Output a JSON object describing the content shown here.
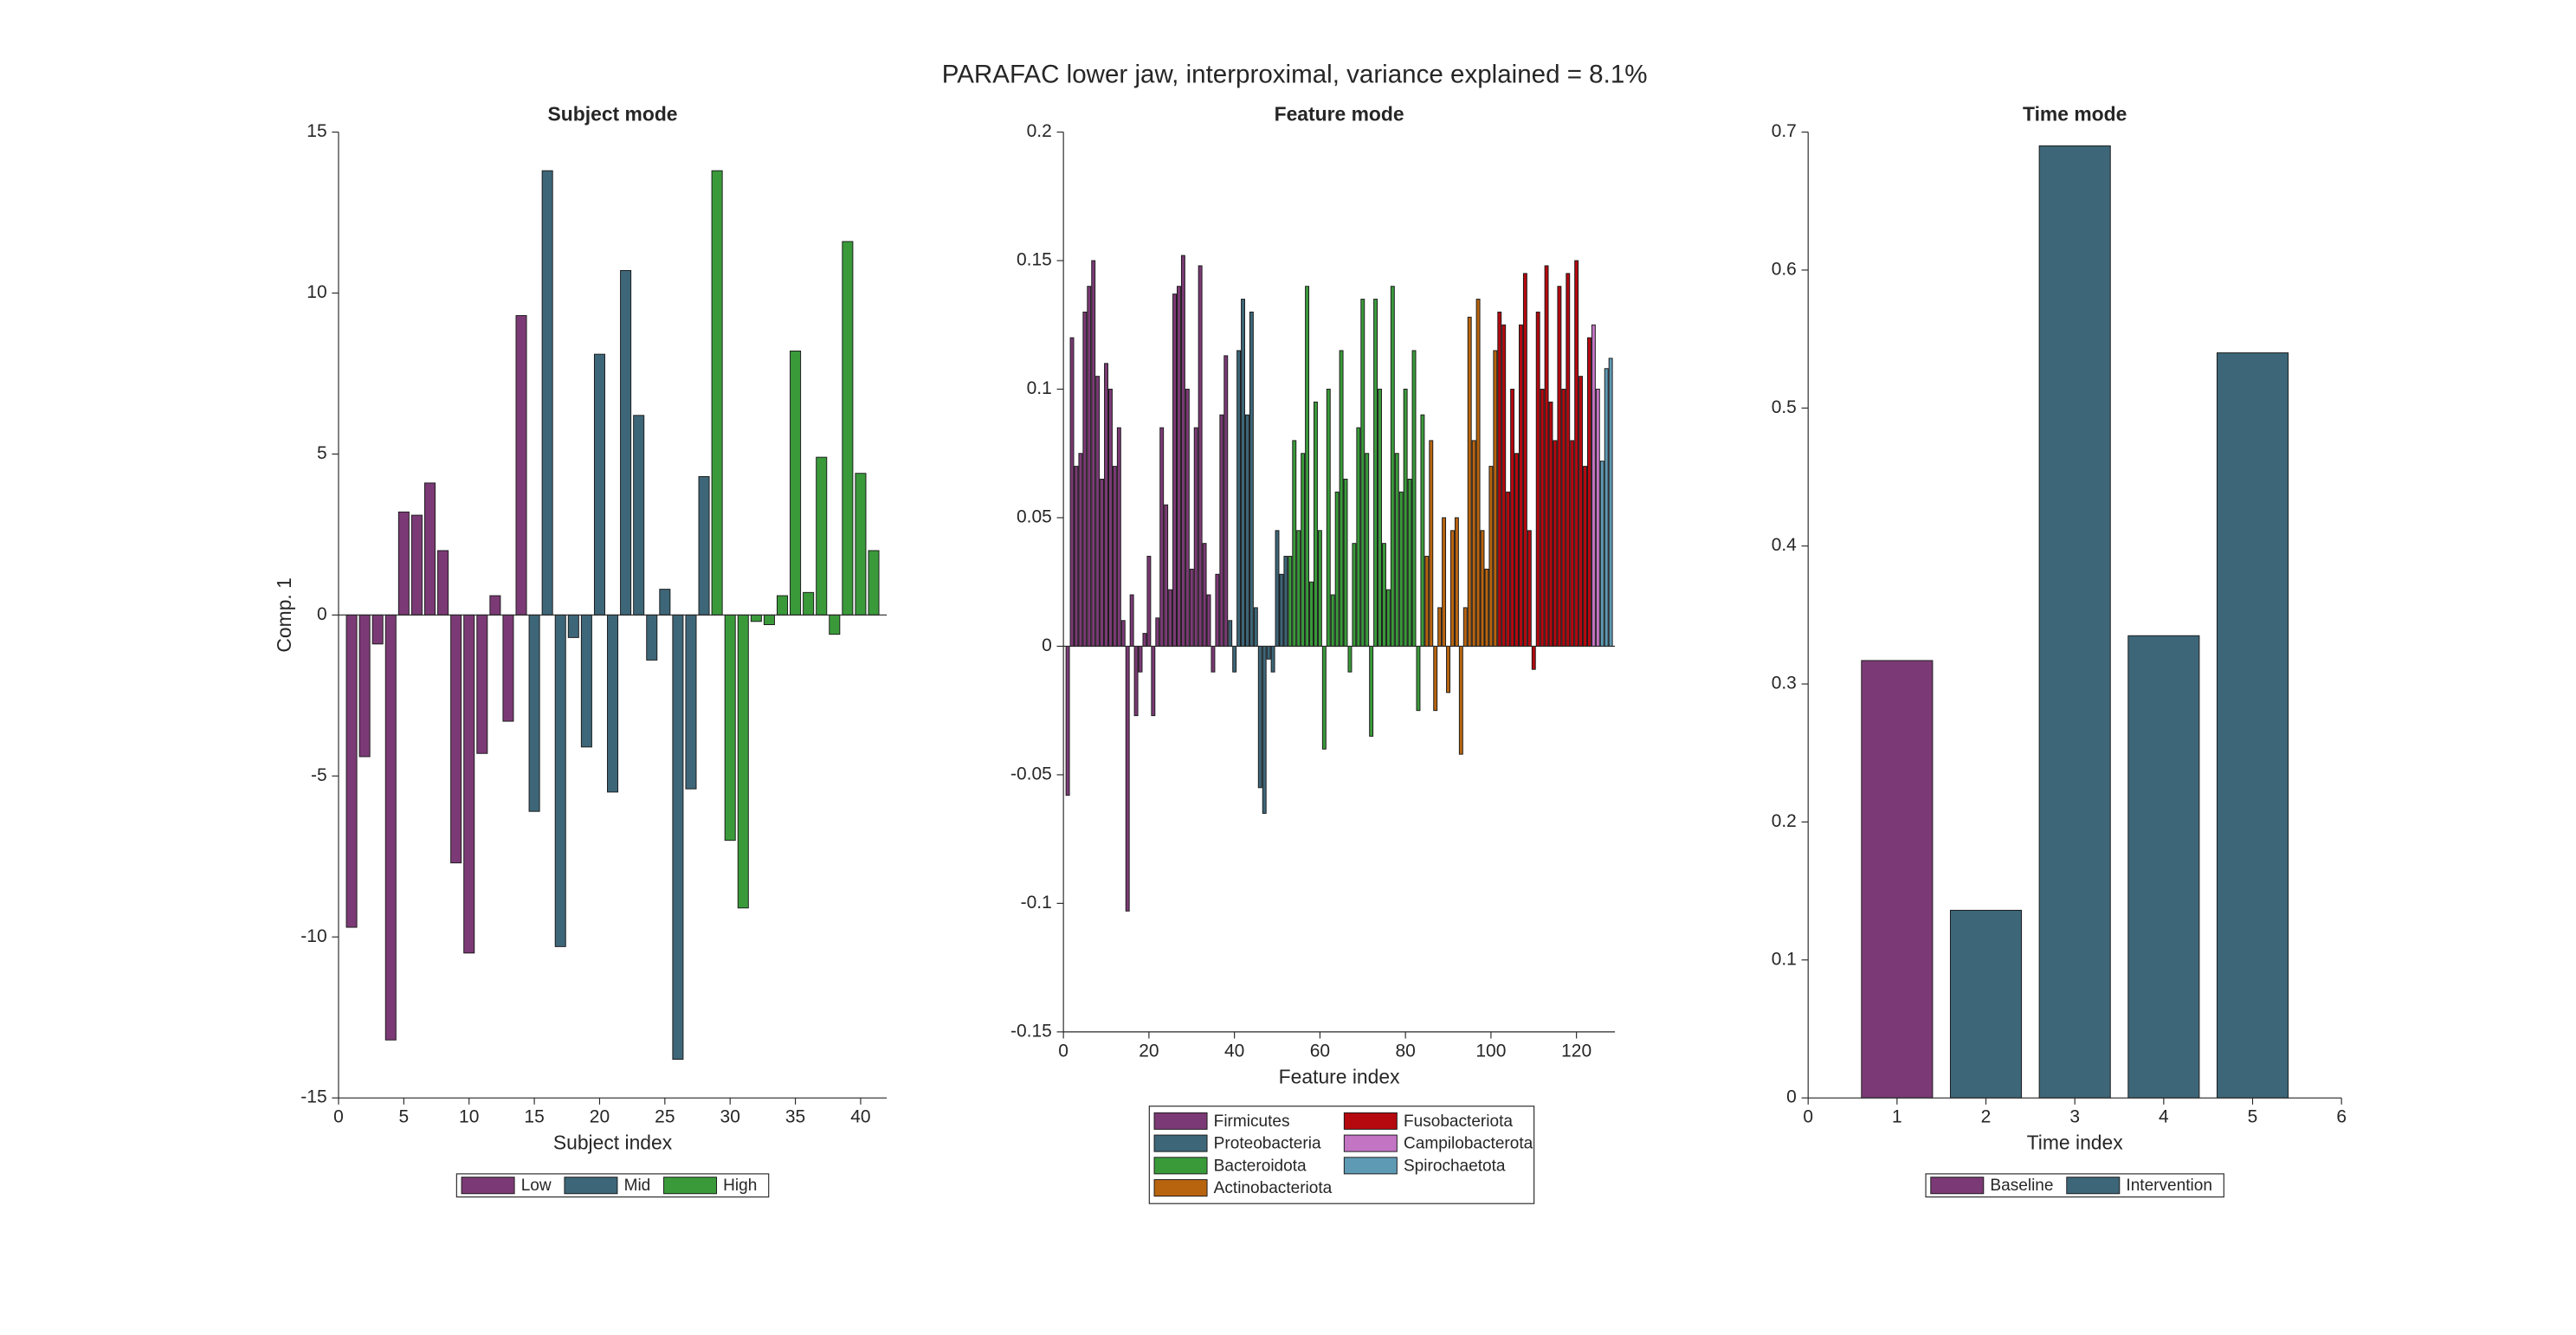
{
  "title": "PARAFAC lower jaw, interproximal, variance explained =  8.1%",
  "chart_data": [
    {
      "type": "bar",
      "title": "Subject mode",
      "xlabel": "Subject index",
      "ylabel": "Comp. 1",
      "xlim": [
        0,
        42
      ],
      "xticks": [
        0,
        5,
        10,
        15,
        20,
        25,
        30,
        35,
        40
      ],
      "ylim": [
        -15,
        15
      ],
      "yticks": [
        -15,
        -10,
        -5,
        0,
        5,
        10,
        15
      ],
      "legend": "south",
      "series": [
        {
          "name": "Low",
          "color": "#7b3a75",
          "x": [
            1,
            2,
            3,
            4,
            5,
            6,
            7,
            8,
            9,
            10,
            11,
            12,
            13,
            14
          ],
          "values": [
            -9.7,
            -4.4,
            -0.9,
            -13.2,
            3.2,
            3.1,
            4.1,
            2.0,
            -7.7,
            -10.5,
            -4.3,
            0.6,
            -3.3,
            9.3
          ]
        },
        {
          "name": "Mid",
          "color": "#3d6678",
          "x": [
            15,
            16,
            17,
            18,
            19,
            20,
            21,
            22,
            23,
            24,
            25,
            26,
            27,
            28
          ],
          "values": [
            -6.1,
            13.8,
            -10.3,
            -0.7,
            -4.1,
            8.1,
            -5.5,
            10.7,
            6.2,
            -1.4,
            0.8,
            -13.8,
            -5.4,
            4.3
          ]
        },
        {
          "name": "High",
          "color": "#3a9a3a",
          "x": [
            29,
            30,
            31,
            32,
            33,
            34,
            35,
            36,
            37,
            38,
            39,
            40,
            41
          ],
          "values": [
            13.8,
            -7.0,
            -9.1,
            -0.2,
            -0.3,
            0.6,
            8.2,
            0.7,
            4.9,
            -0.6,
            11.6,
            4.4,
            2.0
          ]
        }
      ]
    },
    {
      "type": "bar",
      "title": "Feature mode",
      "xlabel": "Feature index",
      "xlim": [
        0,
        129
      ],
      "xticks": [
        0,
        20,
        40,
        60,
        80,
        100,
        120
      ],
      "ylim": [
        -0.15,
        0.2
      ],
      "yticks": [
        -0.15,
        -0.1,
        -0.05,
        0,
        0.05,
        0.1,
        0.15,
        0.2
      ],
      "legend": "south",
      "series": [
        {
          "name": "Firmicutes",
          "color": "#7b3a75",
          "x": [
            1,
            2,
            3,
            4,
            5,
            6,
            7,
            8,
            9,
            10,
            11,
            12,
            13,
            14,
            15,
            16,
            17,
            18,
            19,
            20,
            21,
            22,
            23,
            24,
            25,
            26,
            27,
            28,
            29,
            30,
            31,
            32,
            33,
            34,
            35,
            36,
            37,
            38
          ],
          "values": [
            -0.058,
            0.12,
            0.07,
            0.075,
            0.13,
            0.14,
            0.15,
            0.105,
            0.065,
            0.11,
            0.1,
            0.07,
            0.085,
            0.01,
            -0.103,
            0.02,
            -0.027,
            -0.01,
            0.005,
            0.035,
            -0.027,
            0.011,
            0.085,
            0.055,
            0.022,
            0.137,
            0.14,
            0.152,
            0.1,
            0.03,
            0.085,
            0.148,
            0.04,
            0.02,
            -0.01,
            0.028,
            0.09,
            0.113
          ]
        },
        {
          "name": "Proteobacteria",
          "color": "#3d6678",
          "x": [
            39,
            40,
            41,
            42,
            43,
            44,
            45,
            46,
            47,
            48,
            49,
            50,
            51,
            52
          ],
          "values": [
            0.01,
            -0.01,
            0.115,
            0.135,
            0.09,
            0.13,
            0.015,
            -0.055,
            -0.065,
            -0.005,
            -0.01,
            0.045,
            0.028,
            0.035
          ]
        },
        {
          "name": "Bacteroidota",
          "color": "#3a9a3a",
          "x": [
            53,
            54,
            55,
            56,
            57,
            58,
            59,
            60,
            61,
            62,
            63,
            64,
            65,
            66,
            67,
            68,
            69,
            70,
            71,
            72,
            73,
            74,
            75,
            76,
            77,
            78,
            79,
            80,
            81,
            82,
            83,
            84
          ],
          "values": [
            0.035,
            0.08,
            0.045,
            0.075,
            0.14,
            0.025,
            0.095,
            0.045,
            -0.04,
            0.1,
            0.02,
            0.06,
            0.115,
            0.065,
            -0.01,
            0.04,
            0.085,
            0.135,
            0.075,
            -0.035,
            0.135,
            0.1,
            0.04,
            0.022,
            0.14,
            0.075,
            0.06,
            0.1,
            0.065,
            0.115,
            -0.025,
            0.09
          ]
        },
        {
          "name": "Actinobacteriota",
          "color": "#b8640f",
          "x": [
            85,
            86,
            87,
            88,
            89,
            90,
            91,
            92,
            93,
            94,
            95,
            96,
            97,
            98,
            99,
            100,
            101
          ],
          "values": [
            0.035,
            0.08,
            -0.025,
            0.015,
            0.05,
            -0.018,
            0.045,
            0.05,
            -0.042,
            0.015,
            0.128,
            0.08,
            0.135,
            0.045,
            0.03,
            0.07,
            0.115
          ]
        },
        {
          "name": "Fusobacteriota",
          "color": "#b5080f",
          "x": [
            102,
            103,
            104,
            105,
            106,
            107,
            108,
            109,
            110,
            111,
            112,
            113,
            114,
            115,
            116,
            117,
            118,
            119,
            120,
            121,
            122,
            123
          ],
          "values": [
            0.13,
            0.125,
            0.06,
            0.1,
            0.075,
            0.125,
            0.145,
            0.045,
            -0.009,
            0.13,
            0.1,
            0.148,
            0.095,
            0.08,
            0.14,
            0.1,
            0.145,
            0.08,
            0.15,
            0.105,
            0.07,
            0.12
          ]
        },
        {
          "name": "Campilobacterota",
          "color": "#c374c3",
          "x": [
            124,
            125
          ],
          "values": [
            0.125,
            0.1
          ]
        },
        {
          "name": "Spirochaetota",
          "color": "#5f9ab5",
          "x": [
            126,
            127,
            128
          ],
          "values": [
            0.072,
            0.108,
            0.112
          ]
        }
      ]
    },
    {
      "type": "bar",
      "title": "Time mode",
      "xlabel": "Time index",
      "xlim": [
        0,
        6
      ],
      "xticks": [
        0,
        1,
        2,
        3,
        4,
        5,
        6
      ],
      "ylim": [
        0,
        0.7
      ],
      "yticks": [
        0,
        0.1,
        0.2,
        0.3,
        0.4,
        0.5,
        0.6,
        0.7
      ],
      "legend": "south",
      "series": [
        {
          "name": "Baseline",
          "color": "#7b3a75",
          "x": [
            1
          ],
          "values": [
            0.317
          ]
        },
        {
          "name": "Intervention",
          "color": "#3d6678",
          "x": [
            2,
            3,
            4,
            5
          ],
          "values": [
            0.136,
            0.69,
            0.335,
            0.54
          ]
        }
      ]
    }
  ]
}
